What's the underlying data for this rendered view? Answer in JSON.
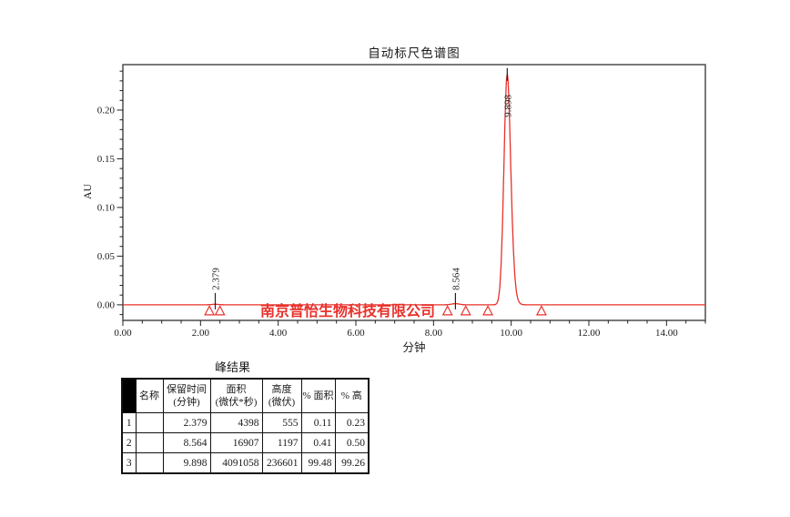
{
  "watermark": {
    "text": "南京普怡生物科技有限公司",
    "color": "#e8312b"
  },
  "chart_data": {
    "type": "line",
    "title": "自动标尺色谱图",
    "xlabel": "分钟",
    "ylabel": "AU",
    "xlim": [
      0.0,
      15.0
    ],
    "ylim": [
      -0.016,
      0.2467
    ],
    "x_major_ticks": [
      0.0,
      2.0,
      4.0,
      6.0,
      8.0,
      10.0,
      12.0,
      14.0
    ],
    "x_minor_tick_step": 0.5,
    "y_major_ticks": [
      0.0,
      0.05,
      0.1,
      0.15,
      0.2
    ],
    "y_minor_tick_step": 0.01,
    "grid": false,
    "legend": "none",
    "trace_color": "#e8312b",
    "baseline_au": 0.0,
    "peaks": [
      {
        "label": "2.379",
        "rt_min": 2.379,
        "height_uv": 555,
        "area_uv_s": 4398
      },
      {
        "label": "8.564",
        "rt_min": 8.564,
        "height_uv": 1197,
        "area_uv_s": 16907
      },
      {
        "label": "9.898",
        "rt_min": 9.898,
        "height_uv": 236601,
        "area_uv_s": 4091058
      }
    ],
    "integration_marks_min": [
      2.23,
      2.5,
      8.36,
      8.83,
      9.4,
      10.78
    ]
  },
  "table": {
    "title": "峰结果",
    "headers": [
      [
        ""
      ],
      [
        "名称"
      ],
      [
        "保留时间",
        "(分钟)"
      ],
      [
        "面积",
        "(微伏*秒)"
      ],
      [
        "高度",
        "(微伏)"
      ],
      [
        "% 面积"
      ],
      [
        "% 高"
      ]
    ],
    "rows": [
      [
        "1",
        "",
        "2.379",
        "4398",
        "555",
        "0.11",
        "0.23"
      ],
      [
        "2",
        "",
        "8.564",
        "16907",
        "1197",
        "0.41",
        "0.50"
      ],
      [
        "3",
        "",
        "9.898",
        "4091058",
        "236601",
        "99.48",
        "99.26"
      ]
    ]
  }
}
